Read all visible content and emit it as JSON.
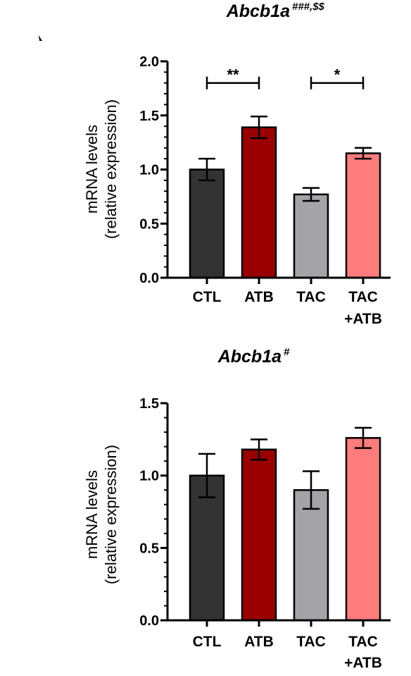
{
  "chart_data": [
    {
      "type": "bar",
      "title": "Abcb1a",
      "title_superscript": "###,$$",
      "ylabel_line1": "mRNA levels",
      "ylabel_line2": "(relative expression)",
      "categories": [
        {
          "line1": "CTL",
          "line2": ""
        },
        {
          "line1": "ATB",
          "line2": ""
        },
        {
          "line1": "TAC",
          "line2": ""
        },
        {
          "line1": "TAC",
          "line2": "+ATB"
        }
      ],
      "values": [
        1.0,
        1.39,
        0.77,
        1.15
      ],
      "errors": [
        0.1,
        0.1,
        0.06,
        0.05
      ],
      "colors": [
        "#333333",
        "#9b0000",
        "#a3a3a8",
        "#ff7c7c"
      ],
      "ylim": [
        0,
        2.0
      ],
      "yticks": [
        {
          "value": 0.0,
          "label": "0.0"
        },
        {
          "value": 0.5,
          "label": "0.5"
        },
        {
          "value": 1.0,
          "label": "1.0"
        },
        {
          "value": 1.5,
          "label": "1.5"
        },
        {
          "value": 2.0,
          "label": "2.0"
        }
      ],
      "yticks_minor_step": 0.1,
      "significance": [
        {
          "from": 0,
          "to": 1,
          "value": 1.8,
          "label": "**"
        },
        {
          "from": 2,
          "to": 3,
          "value": 1.8,
          "label": "*"
        }
      ],
      "grid": false,
      "legend": "none"
    },
    {
      "type": "bar",
      "title": "Abcb1a",
      "title_superscript": "#",
      "ylabel_line1": "mRNA levels",
      "ylabel_line2": "(relative expression)",
      "categories": [
        {
          "line1": "CTL",
          "line2": ""
        },
        {
          "line1": "ATB",
          "line2": ""
        },
        {
          "line1": "TAC",
          "line2": ""
        },
        {
          "line1": "TAC",
          "line2": "+ATB"
        }
      ],
      "values": [
        1.0,
        1.18,
        0.9,
        1.26
      ],
      "errors": [
        0.15,
        0.07,
        0.13,
        0.07
      ],
      "colors": [
        "#333333",
        "#9b0000",
        "#a3a3a8",
        "#ff7c7c"
      ],
      "ylim": [
        0,
        1.5
      ],
      "yticks": [
        {
          "value": 0.0,
          "label": "0.0"
        },
        {
          "value": 0.5,
          "label": "0.5"
        },
        {
          "value": 1.0,
          "label": "1.0"
        },
        {
          "value": 1.5,
          "label": "1.5"
        }
      ],
      "yticks_minor_step": 0.1,
      "significance": [],
      "grid": false,
      "legend": "none"
    }
  ]
}
